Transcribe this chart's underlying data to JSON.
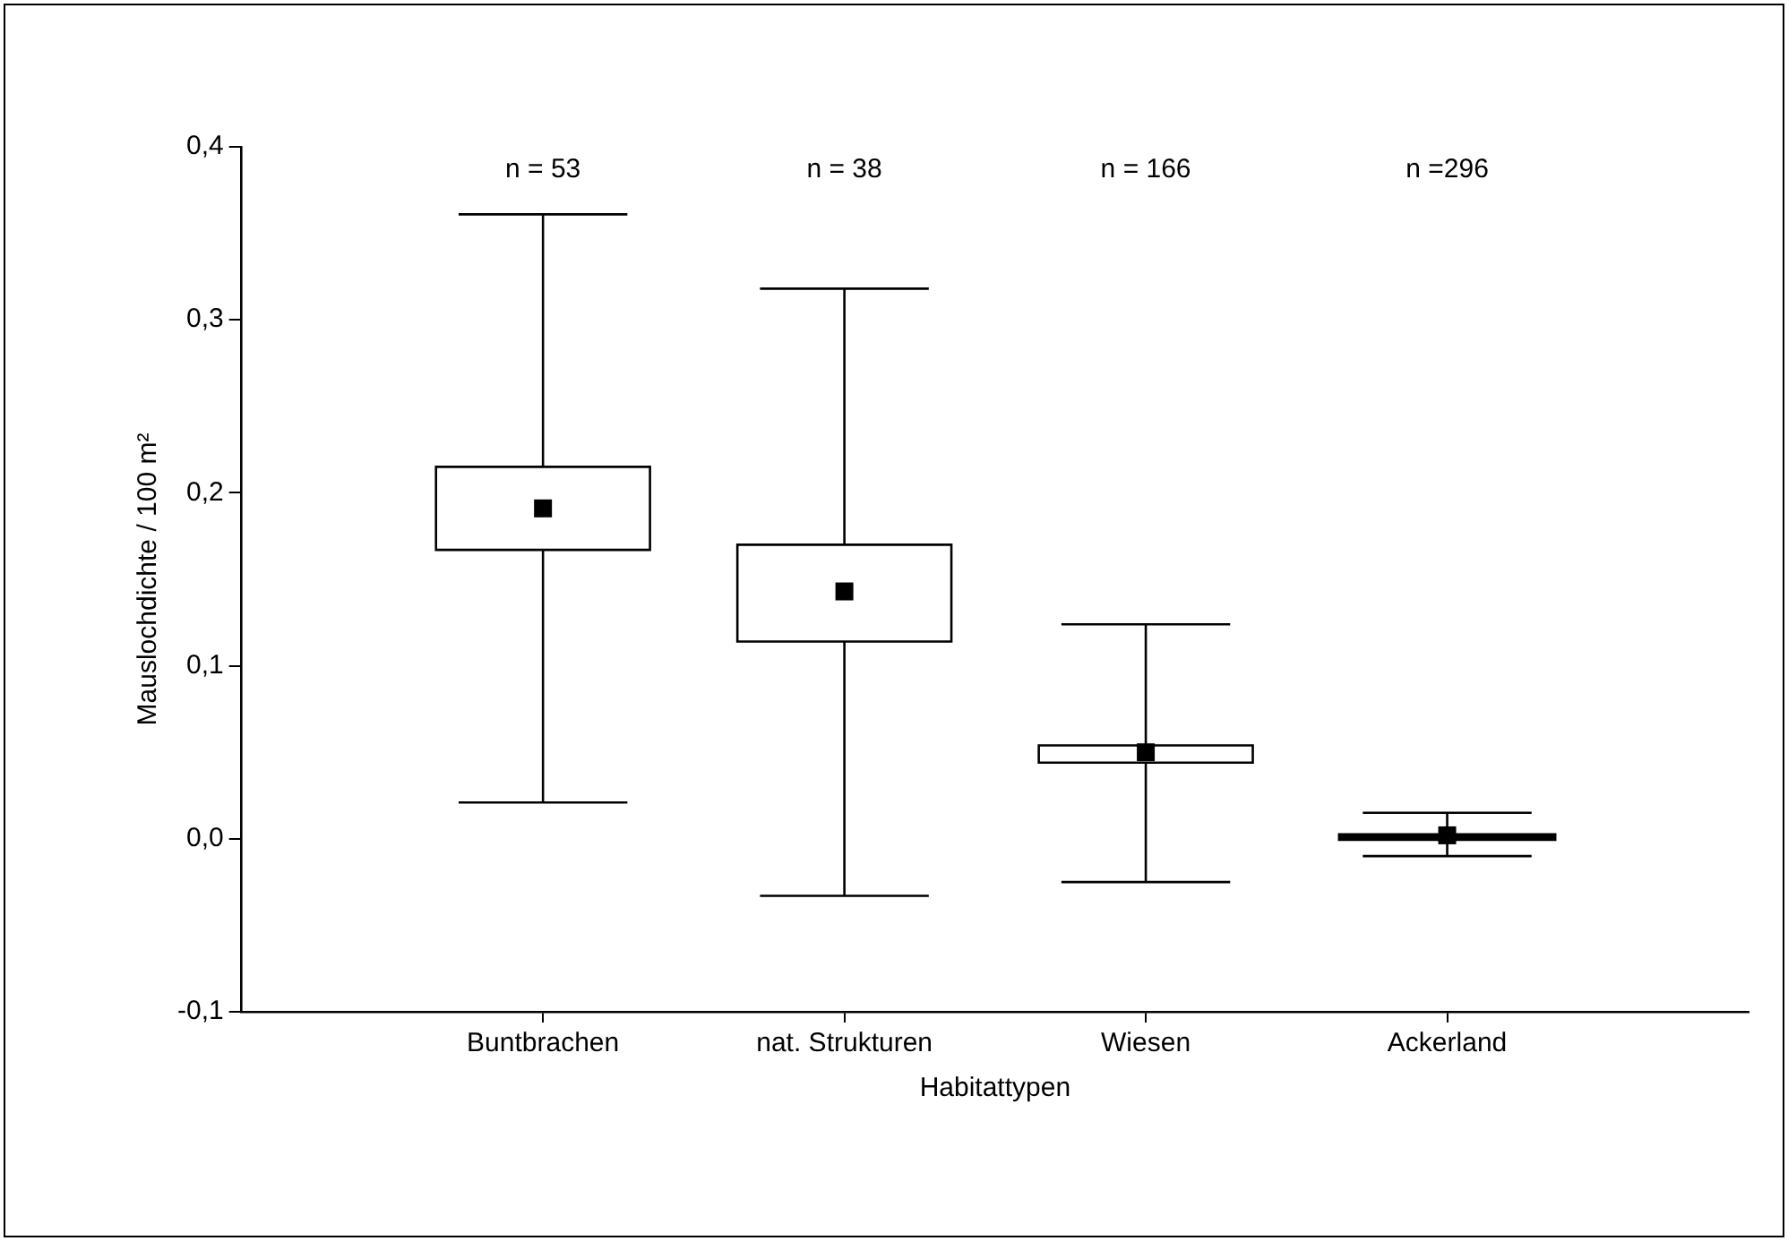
{
  "chart_data": {
    "type": "box",
    "xlabel": "Habitattypen",
    "ylabel": "Mauslochdichte / 100 m²",
    "categories": [
      "Buntbrachen",
      "nat. Strukturen",
      "Wiesen",
      "Ackerland"
    ],
    "boxes": [
      {
        "low": 0.021,
        "q1": 0.167,
        "mean": 0.191,
        "q3": 0.215,
        "high": 0.361
      },
      {
        "low": -0.033,
        "q1": 0.114,
        "mean": 0.143,
        "q3": 0.17,
        "high": 0.318
      },
      {
        "low": -0.025,
        "q1": 0.044,
        "mean": 0.05,
        "q3": 0.054,
        "high": 0.124
      },
      {
        "low": -0.01,
        "q1": 0.0,
        "mean": 0.002,
        "q3": 0.002,
        "high": 0.015
      }
    ],
    "color": "#ffffff",
    "marker": "square",
    "ylim": [
      -0.1,
      0.4
    ],
    "yticks": [
      {
        "value": -0.1,
        "label": "-0,1"
      },
      {
        "value": 0,
        "label": "0,0"
      },
      {
        "value": 0.1,
        "label": "0,1"
      },
      {
        "value": 0.2,
        "label": "0,2"
      },
      {
        "value": 0.3,
        "label": "0,3"
      },
      {
        "value": 0.4,
        "label": "0,4"
      }
    ],
    "annotations": [
      "n = 53",
      "n = 38",
      "n = 166",
      "n =296"
    ],
    "grid": false,
    "legend": false
  }
}
